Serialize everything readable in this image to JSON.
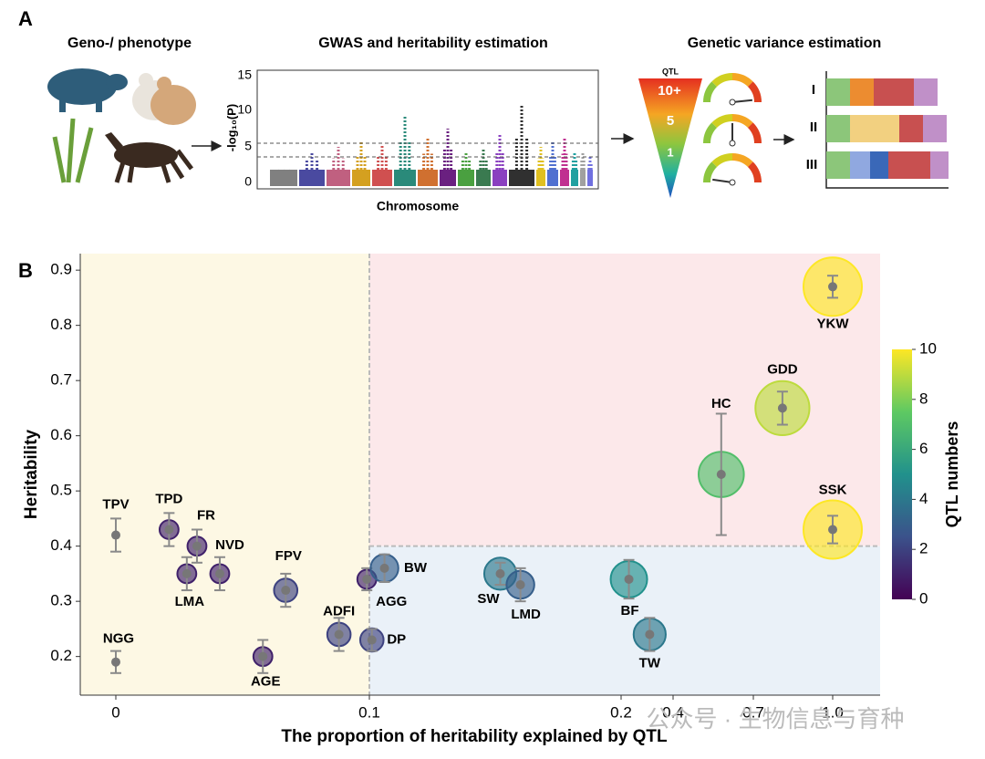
{
  "panel_a": {
    "label": "A",
    "headings": [
      "Geno-/ phenotype",
      "GWAS and heritability estimation",
      "Genetic variance estimation"
    ],
    "gwas": {
      "y_label": "-log₁₀(P)",
      "yticks": [
        "15",
        "10",
        "5",
        "0"
      ],
      "x_label": "Chromosome"
    },
    "funnel": {
      "title": "QTL",
      "levels": [
        "10+",
        "5",
        "1"
      ]
    },
    "groups": [
      "I",
      "II",
      "III"
    ]
  },
  "panel_b_label": "B",
  "chart_data": {
    "type": "bubble",
    "x_label": "The proportion of heritability explained by QTL",
    "y_label": "Heritability",
    "categories": [
      "TPV",
      "TPD",
      "FR",
      "LMA",
      "NVD",
      "FPV",
      "AGE",
      "ADFI",
      "AGG",
      "BW",
      "DP",
      "NGG",
      "SW",
      "LMD",
      "BF",
      "TW",
      "HC",
      "GDD",
      "YKW",
      "SSK"
    ],
    "x": [
      0,
      0.021,
      0.032,
      0.028,
      0.041,
      0.067,
      0.058,
      0.088,
      0.099,
      0.106,
      0.101,
      0,
      0.152,
      0.16,
      0.23,
      0.31,
      0.58,
      0.81,
      1.0,
      1.0
    ],
    "values": [
      0.42,
      0.43,
      0.4,
      0.35,
      0.35,
      0.32,
      0.2,
      0.24,
      0.34,
      0.36,
      0.23,
      0.19,
      0.35,
      0.33,
      0.34,
      0.24,
      0.53,
      0.65,
      0.87,
      0.43
    ],
    "errors": [
      0.03,
      0.03,
      0.03,
      0.03,
      0.03,
      0.03,
      0.03,
      0.03,
      0.02,
      0.025,
      0.02,
      0.02,
      0.02,
      0.03,
      0.035,
      0.03,
      0.11,
      0.03,
      0.02,
      0.025
    ],
    "qtl": [
      0,
      1,
      1,
      1,
      1,
      2,
      1,
      2,
      1,
      3,
      2,
      0,
      4,
      3,
      5,
      4,
      7,
      9,
      10,
      10
    ],
    "xticks": [
      0,
      0.1,
      0.2,
      0.4,
      0.7,
      {
        "value": 1,
        "label": "1.0"
      }
    ],
    "ylim": [
      0.13,
      0.93
    ],
    "yticks": [
      0.2,
      0.3,
      0.4,
      0.5,
      0.6,
      0.7,
      0.8,
      0.9
    ],
    "quadrant_x": 0.1,
    "quadrant_y": 0.4,
    "colorbar": {
      "label": "QTL numbers",
      "lim": [
        0,
        10
      ],
      "ticks": [
        0,
        2,
        4,
        6,
        8,
        10
      ]
    }
  },
  "watermark": "公众号 · 生物信息与育种"
}
